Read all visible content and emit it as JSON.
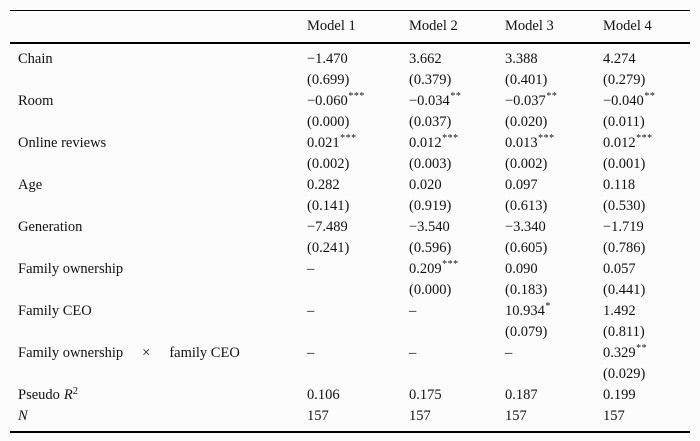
{
  "colors": {
    "background": "#fcfcfc",
    "text": "#111111",
    "rule": "#000000"
  },
  "table": {
    "header": {
      "labels": [
        "Model 1",
        "Model 2",
        "Model 3",
        "Model 4"
      ]
    },
    "rows": [
      {
        "type": "coef",
        "label": "Chain",
        "cells": [
          {
            "value": "−1.470",
            "stars": "",
            "se": "(0.699)"
          },
          {
            "value": "3.662",
            "stars": "",
            "se": "(0.379)"
          },
          {
            "value": "3.388",
            "stars": "",
            "se": "(0.401)"
          },
          {
            "value": "4.274",
            "stars": "",
            "se": "(0.279)"
          }
        ]
      },
      {
        "type": "coef",
        "label": "Room",
        "cells": [
          {
            "value": "−0.060",
            "stars": "***",
            "se": "(0.000)"
          },
          {
            "value": "−0.034",
            "stars": "**",
            "se": "(0.037)"
          },
          {
            "value": "−0.037",
            "stars": "**",
            "se": "(0.020)"
          },
          {
            "value": "−0.040",
            "stars": "**",
            "se": "(0.011)"
          }
        ]
      },
      {
        "type": "coef",
        "label": "Online reviews",
        "cells": [
          {
            "value": "0.021",
            "stars": "***",
            "se": "(0.002)"
          },
          {
            "value": "0.012",
            "stars": "***",
            "se": "(0.003)"
          },
          {
            "value": "0.013",
            "stars": "***",
            "se": "(0.002)"
          },
          {
            "value": "0.012",
            "stars": "***",
            "se": "(0.001)"
          }
        ]
      },
      {
        "type": "coef",
        "label": "Age",
        "cells": [
          {
            "value": "0.282",
            "stars": "",
            "se": "(0.141)"
          },
          {
            "value": "0.020",
            "stars": "",
            "se": "(0.919)"
          },
          {
            "value": "0.097",
            "stars": "",
            "se": "(0.613)"
          },
          {
            "value": "0.118",
            "stars": "",
            "se": "(0.530)"
          }
        ]
      },
      {
        "type": "coef",
        "label": "Generation",
        "cells": [
          {
            "value": "−7.489",
            "stars": "",
            "se": "(0.241)"
          },
          {
            "value": "−3.540",
            "stars": "",
            "se": "(0.596)"
          },
          {
            "value": "−3.340",
            "stars": "",
            "se": "(0.605)"
          },
          {
            "value": "−1.719",
            "stars": "",
            "se": "(0.786)"
          }
        ]
      },
      {
        "type": "coef",
        "label": "Family ownership",
        "cells": [
          {
            "value": "–",
            "stars": "",
            "se": ""
          },
          {
            "value": "0.209",
            "stars": "***",
            "se": "(0.000)"
          },
          {
            "value": "0.090",
            "stars": "",
            "se": "(0.183)"
          },
          {
            "value": "0.057",
            "stars": "",
            "se": "(0.441)"
          }
        ]
      },
      {
        "type": "coef",
        "label": "Family CEO",
        "cells": [
          {
            "value": "–",
            "stars": "",
            "se": ""
          },
          {
            "value": "–",
            "stars": "",
            "se": ""
          },
          {
            "value": "10.934",
            "stars": "*",
            "se": "(0.079)"
          },
          {
            "value": "1.492",
            "stars": "",
            "se": "(0.811)"
          }
        ]
      },
      {
        "type": "coef",
        "label": "Family ownership × family CEO",
        "label_parts": [
          "Family ownership",
          "×",
          "family CEO"
        ],
        "cells": [
          {
            "value": "–",
            "stars": "",
            "se": ""
          },
          {
            "value": "–",
            "stars": "",
            "se": ""
          },
          {
            "value": "–",
            "stars": "",
            "se": ""
          },
          {
            "value": "0.329",
            "stars": "**",
            "se": "(0.029)"
          }
        ]
      },
      {
        "type": "stat",
        "label_prefix": "Pseudo",
        "label_symbol": "R",
        "label_sup": "2",
        "values": [
          "0.106",
          "0.175",
          "0.187",
          "0.199"
        ]
      },
      {
        "type": "stat",
        "label_prefix": "",
        "label_symbol": "N",
        "label_sup": "",
        "values": [
          "157",
          "157",
          "157",
          "157"
        ]
      }
    ]
  }
}
